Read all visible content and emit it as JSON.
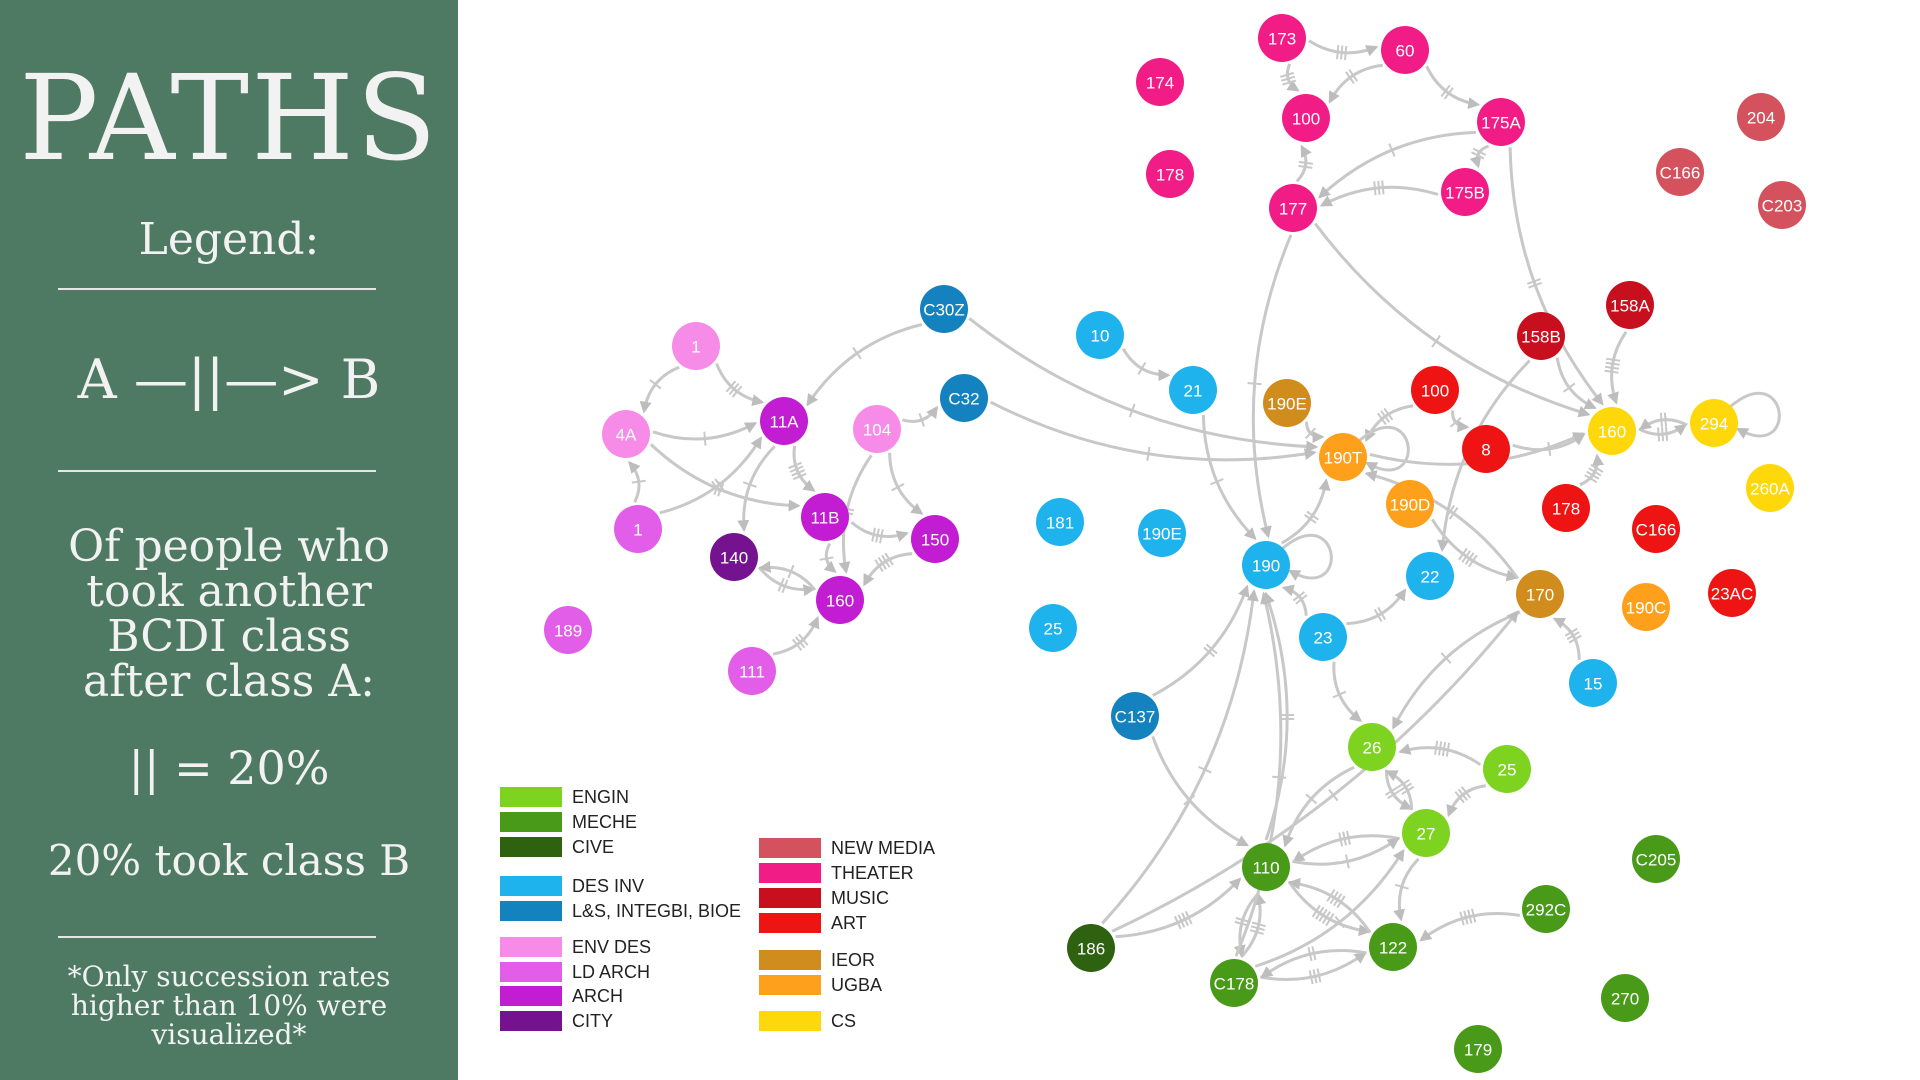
{
  "sidebar": {
    "title": "PATHS",
    "legend_heading": "Legend:",
    "notation": "A —||—> B",
    "description": "Of people who took another BCDI class after class A:",
    "scale": "|| = 20%",
    "example": "20% took class B",
    "footnote": "*Only succession rates higher than 10% were visualized*"
  },
  "colors": {
    "sidebar": "#4e7a63",
    "edge": "#c8c8c8",
    "ENGIN": "#7ed321",
    "MECHE": "#4a9a1a",
    "CIVE": "#2e6110",
    "DES_INV": "#1fb3ee",
    "LS": "#1582c0",
    "ENV_DES": "#f78ce8",
    "LD_ARCH": "#e25ee8",
    "ARCH": "#c21dd2",
    "CITY": "#75128f",
    "NEW_MEDIA": "#d3525d",
    "THEATER": "#f21c86",
    "MUSIC": "#c70f1d",
    "ART": "#ee1414",
    "IEOR": "#d08c1c",
    "UGBA": "#ffa01c",
    "CS": "#fed80a"
  },
  "legend": [
    {
      "label": "ENGIN",
      "color_key": "ENGIN"
    },
    {
      "label": "MECHE",
      "color_key": "MECHE"
    },
    {
      "label": "CIVE",
      "color_key": "CIVE"
    },
    {
      "label": "DES INV",
      "color_key": "DES_INV"
    },
    {
      "label": "L&S, INTEGBI, BIOE",
      "color_key": "LS"
    },
    {
      "label": "ENV DES",
      "color_key": "ENV_DES"
    },
    {
      "label": "LD ARCH",
      "color_key": "LD_ARCH"
    },
    {
      "label": "ARCH",
      "color_key": "ARCH"
    },
    {
      "label": "CITY",
      "color_key": "CITY"
    },
    {
      "label": "NEW MEDIA",
      "color_key": "NEW_MEDIA"
    },
    {
      "label": "THEATER",
      "color_key": "THEATER"
    },
    {
      "label": "MUSIC",
      "color_key": "MUSIC"
    },
    {
      "label": "ART",
      "color_key": "ART"
    },
    {
      "label": "IEOR",
      "color_key": "IEOR"
    },
    {
      "label": "UGBA",
      "color_key": "UGBA"
    },
    {
      "label": "CS",
      "color_key": "CS"
    }
  ],
  "nodes": [
    {
      "id": "th173",
      "label": "173",
      "color_key": "THEATER"
    },
    {
      "id": "th60",
      "label": "60",
      "color_key": "THEATER"
    },
    {
      "id": "th174",
      "label": "174",
      "color_key": "THEATER"
    },
    {
      "id": "th100",
      "label": "100",
      "color_key": "THEATER"
    },
    {
      "id": "th175A",
      "label": "175A",
      "color_key": "THEATER"
    },
    {
      "id": "th178",
      "label": "178",
      "color_key": "THEATER"
    },
    {
      "id": "th175B",
      "label": "175B",
      "color_key": "THEATER"
    },
    {
      "id": "th177",
      "label": "177",
      "color_key": "THEATER"
    },
    {
      "id": "nm204",
      "label": "204",
      "color_key": "NEW_MEDIA"
    },
    {
      "id": "nmC166",
      "label": "C166",
      "color_key": "NEW_MEDIA"
    },
    {
      "id": "nmC203",
      "label": "C203",
      "color_key": "NEW_MEDIA"
    },
    {
      "id": "mu158A",
      "label": "158A",
      "color_key": "MUSIC"
    },
    {
      "id": "mu158B",
      "label": "158B",
      "color_key": "MUSIC"
    },
    {
      "id": "ar100",
      "label": "100",
      "color_key": "ART"
    },
    {
      "id": "ar8",
      "label": "8",
      "color_key": "ART"
    },
    {
      "id": "ar178",
      "label": "178",
      "color_key": "ART"
    },
    {
      "id": "arC166",
      "label": "C166",
      "color_key": "ART"
    },
    {
      "id": "ar23AC",
      "label": "23AC",
      "color_key": "ART"
    },
    {
      "id": "cs160",
      "label": "160",
      "color_key": "CS"
    },
    {
      "id": "cs294",
      "label": "294",
      "color_key": "CS"
    },
    {
      "id": "cs260A",
      "label": "260A",
      "color_key": "CS"
    },
    {
      "id": "ie190E",
      "label": "190E",
      "color_key": "IEOR"
    },
    {
      "id": "ug190T",
      "label": "190T",
      "color_key": "UGBA"
    },
    {
      "id": "ug190D",
      "label": "190D",
      "color_key": "UGBA"
    },
    {
      "id": "ie170",
      "label": "170",
      "color_key": "IEOR"
    },
    {
      "id": "ug190C",
      "label": "190C",
      "color_key": "UGBA"
    },
    {
      "id": "lsC30Z",
      "label": "C30Z",
      "color_key": "LS"
    },
    {
      "id": "lsC32",
      "label": "C32",
      "color_key": "LS"
    },
    {
      "id": "lsC137",
      "label": "C137",
      "color_key": "LS"
    },
    {
      "id": "di10",
      "label": "10",
      "color_key": "DES_INV"
    },
    {
      "id": "di21",
      "label": "21",
      "color_key": "DES_INV"
    },
    {
      "id": "di181",
      "label": "181",
      "color_key": "DES_INV"
    },
    {
      "id": "di190E",
      "label": "190E",
      "color_key": "DES_INV"
    },
    {
      "id": "di190",
      "label": "190",
      "color_key": "DES_INV"
    },
    {
      "id": "di22",
      "label": "22",
      "color_key": "DES_INV"
    },
    {
      "id": "di23",
      "label": "23",
      "color_key": "DES_INV"
    },
    {
      "id": "di25",
      "label": "25",
      "color_key": "DES_INV"
    },
    {
      "id": "di15",
      "label": "15",
      "color_key": "DES_INV"
    },
    {
      "id": "ed1a",
      "label": "1",
      "color_key": "ENV_DES"
    },
    {
      "id": "ed4A",
      "label": "4A",
      "color_key": "ENV_DES"
    },
    {
      "id": "ld1b",
      "label": "1",
      "color_key": "LD_ARCH"
    },
    {
      "id": "ed104",
      "label": "104",
      "color_key": "ENV_DES"
    },
    {
      "id": "ld189",
      "label": "189",
      "color_key": "LD_ARCH"
    },
    {
      "id": "ld111",
      "label": "111",
      "color_key": "LD_ARCH"
    },
    {
      "id": "ac11A",
      "label": "11A",
      "color_key": "ARCH"
    },
    {
      "id": "ac11B",
      "label": "11B",
      "color_key": "ARCH"
    },
    {
      "id": "ac150",
      "label": "150",
      "color_key": "ARCH"
    },
    {
      "id": "ac160",
      "label": "160",
      "color_key": "ARCH"
    },
    {
      "id": "ci140",
      "label": "140",
      "color_key": "CITY"
    },
    {
      "id": "en26",
      "label": "26",
      "color_key": "ENGIN"
    },
    {
      "id": "en25",
      "label": "25",
      "color_key": "ENGIN"
    },
    {
      "id": "en27",
      "label": "27",
      "color_key": "ENGIN"
    },
    {
      "id": "me110",
      "label": "110",
      "color_key": "MECHE"
    },
    {
      "id": "me122",
      "label": "122",
      "color_key": "MECHE"
    },
    {
      "id": "meC178",
      "label": "C178",
      "color_key": "MECHE"
    },
    {
      "id": "ce186",
      "label": "186",
      "color_key": "CIVE"
    },
    {
      "id": "meC205",
      "label": "C205",
      "color_key": "MECHE"
    },
    {
      "id": "me292C",
      "label": "292C",
      "color_key": "MECHE"
    },
    {
      "id": "me270",
      "label": "270",
      "color_key": "MECHE"
    },
    {
      "id": "me179",
      "label": "179",
      "color_key": "MECHE"
    }
  ],
  "edges": [
    {
      "from": "th173",
      "to": "th60",
      "rate": 0.6
    },
    {
      "from": "th60",
      "to": "th100",
      "rate": 0.4
    },
    {
      "from": "th173",
      "to": "th100",
      "rate": 0.6
    },
    {
      "from": "th60",
      "to": "th175A",
      "rate": 0.4
    },
    {
      "from": "th175A",
      "to": "th175B",
      "rate": 0.4
    },
    {
      "from": "th175A",
      "to": "th177",
      "rate": 0.2
    },
    {
      "from": "th175B",
      "to": "th177",
      "rate": 0.6
    },
    {
      "from": "th177",
      "to": "th100",
      "rate": 0.4
    },
    {
      "from": "th175A",
      "to": "cs160",
      "rate": 0.4
    },
    {
      "from": "th177",
      "to": "cs160",
      "rate": 0.2
    },
    {
      "from": "th177",
      "to": "di190",
      "rate": 0.2
    },
    {
      "from": "mu158A",
      "to": "cs160",
      "rate": 0.8
    },
    {
      "from": "mu158B",
      "to": "cs160",
      "rate": 0.2
    },
    {
      "from": "ar100",
      "to": "ar8",
      "rate": 0.2
    },
    {
      "from": "ar100",
      "to": "ug190T",
      "rate": 0.6
    },
    {
      "from": "ar8",
      "to": "cs160",
      "rate": 0.2
    },
    {
      "from": "ar178",
      "to": "cs160",
      "rate": 0.8
    },
    {
      "from": "cs160",
      "to": "cs294",
      "rate": 0.6
    },
    {
      "from": "cs294",
      "to": "cs160",
      "rate": 0.4
    },
    {
      "from": "cs294",
      "to": "cs294",
      "rate": 0.8
    },
    {
      "from": "ie190E",
      "to": "ug190T",
      "rate": 0.2
    },
    {
      "from": "ug190T",
      "to": "ug190T",
      "rate": 0.6
    },
    {
      "from": "ug190T",
      "to": "cs160",
      "rate": 0.2
    },
    {
      "from": "ug190D",
      "to": "ie170",
      "rate": 0.8
    },
    {
      "from": "ie170",
      "to": "ug190T",
      "rate": 0.4
    },
    {
      "from": "ie170",
      "to": "en26",
      "rate": 0.2
    },
    {
      "from": "mu158B",
      "to": "di22",
      "rate": 0.2
    },
    {
      "from": "di15",
      "to": "ie170",
      "rate": 0.6
    },
    {
      "from": "lsC30Z",
      "to": "ac11A",
      "rate": 0.2
    },
    {
      "from": "lsC30Z",
      "to": "ug190T",
      "rate": 0.2
    },
    {
      "from": "lsC32",
      "to": "ug190T",
      "rate": 0.2
    },
    {
      "from": "ed104",
      "to": "lsC32",
      "rate": 0.2
    },
    {
      "from": "di10",
      "to": "di21",
      "rate": 0.2
    },
    {
      "from": "di21",
      "to": "di190",
      "rate": 0.2
    },
    {
      "from": "di190",
      "to": "di190",
      "rate": 0.2
    },
    {
      "from": "di190",
      "to": "ug190T",
      "rate": 0.4
    },
    {
      "from": "di23",
      "to": "di22",
      "rate": 0.4
    },
    {
      "from": "di23",
      "to": "di190",
      "rate": 0.4
    },
    {
      "from": "di23",
      "to": "en26",
      "rate": 0.2
    },
    {
      "from": "lsC137",
      "to": "di190",
      "rate": 0.4
    },
    {
      "from": "lsC137",
      "to": "me110",
      "rate": 0.2
    },
    {
      "from": "ed1a",
      "to": "ed4A",
      "rate": 0.2
    },
    {
      "from": "ed1a",
      "to": "ac11A",
      "rate": 0.6
    },
    {
      "from": "ed4A",
      "to": "ac11A",
      "rate": 0.2
    },
    {
      "from": "ed4A",
      "to": "ac11B",
      "rate": 0.4
    },
    {
      "from": "ld1b",
      "to": "ed4A",
      "rate": 0.2
    },
    {
      "from": "ld1b",
      "to": "ac11A",
      "rate": 0.4
    },
    {
      "from": "ac11A",
      "to": "ac11B",
      "rate": 0.8
    },
    {
      "from": "ac11A",
      "to": "ci140",
      "rate": 0.2
    },
    {
      "from": "ed104",
      "to": "ac150",
      "rate": 0.2
    },
    {
      "from": "ed104",
      "to": "ac160",
      "rate": 0.4
    },
    {
      "from": "ac11B",
      "to": "ac150",
      "rate": 0.6
    },
    {
      "from": "ac11B",
      "to": "ac160",
      "rate": 0.2
    },
    {
      "from": "ci140",
      "to": "ac160",
      "rate": 0.4
    },
    {
      "from": "ac160",
      "to": "ci140",
      "rate": 0.2
    },
    {
      "from": "ac150",
      "to": "ac160",
      "rate": 0.8
    },
    {
      "from": "ld111",
      "to": "ac160",
      "rate": 0.6
    },
    {
      "from": "en25",
      "to": "en26",
      "rate": 0.8
    },
    {
      "from": "en25",
      "to": "en27",
      "rate": 0.6
    },
    {
      "from": "en26",
      "to": "en27",
      "rate": 0.4
    },
    {
      "from": "en27",
      "to": "en26",
      "rate": 0.6
    },
    {
      "from": "en26",
      "to": "me110",
      "rate": 0.2
    },
    {
      "from": "en27",
      "to": "me110",
      "rate": 0.6
    },
    {
      "from": "me110",
      "to": "en27",
      "rate": 0.2
    },
    {
      "from": "me110",
      "to": "me122",
      "rate": 1.0
    },
    {
      "from": "me122",
      "to": "me110",
      "rate": 0.8
    },
    {
      "from": "en27",
      "to": "me122",
      "rate": 0.2
    },
    {
      "from": "meC178",
      "to": "me110",
      "rate": 0.6
    },
    {
      "from": "me110",
      "to": "meC178",
      "rate": 0.4
    },
    {
      "from": "meC178",
      "to": "me122",
      "rate": 0.6
    },
    {
      "from": "me122",
      "to": "meC178",
      "rate": 0.4
    },
    {
      "from": "meC178",
      "to": "di190",
      "rate": 0.2
    },
    {
      "from": "meC178",
      "to": "en27",
      "rate": 0.2
    },
    {
      "from": "me110",
      "to": "di190",
      "rate": 0.4
    },
    {
      "from": "ce186",
      "to": "me110",
      "rate": 0.8
    },
    {
      "from": "ce186",
      "to": "di190",
      "rate": 0.2
    },
    {
      "from": "ce186",
      "to": "ie170",
      "rate": 0.2
    },
    {
      "from": "me292C",
      "to": "me122",
      "rate": 0.8
    }
  ]
}
